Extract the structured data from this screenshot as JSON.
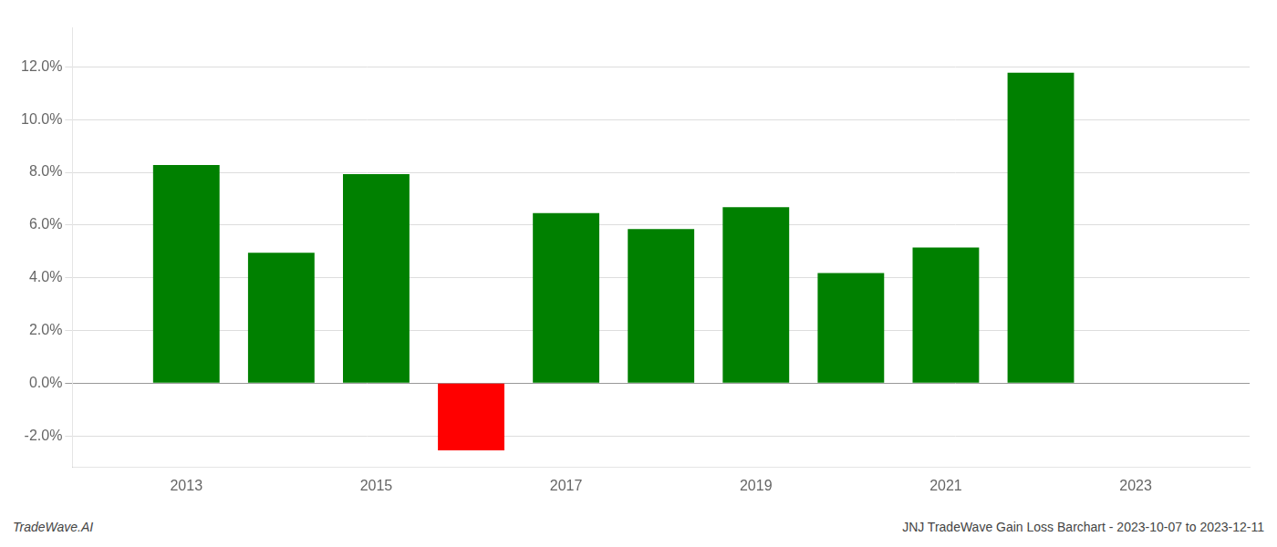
{
  "chart_data": {
    "type": "bar",
    "x": [
      2013,
      2014,
      2015,
      2016,
      2017,
      2018,
      2019,
      2020,
      2021,
      2022,
      2023
    ],
    "values": [
      0.0828,
      0.0495,
      0.0793,
      -0.0255,
      0.0645,
      0.0585,
      0.0668,
      0.0418,
      0.0515,
      0.1178,
      null
    ],
    "colors": [
      "#008000",
      "#008000",
      "#008000",
      "#ff0000",
      "#008000",
      "#008000",
      "#008000",
      "#008000",
      "#008000",
      "#008000",
      null
    ],
    "xlim": [
      2011.8,
      2024.2
    ],
    "xticks": [
      2013,
      2015,
      2017,
      2019,
      2021,
      2023
    ],
    "ylim": [
      -0.032,
      0.135
    ],
    "yticks": [
      {
        "value": -0.02,
        "label": "-2.0%"
      },
      {
        "value": 0.0,
        "label": "0.0%"
      },
      {
        "value": 0.02,
        "label": "2.0%"
      },
      {
        "value": 0.04,
        "label": "4.0%"
      },
      {
        "value": 0.06,
        "label": "6.0%"
      },
      {
        "value": 0.08,
        "label": "8.0%"
      },
      {
        "value": 0.1,
        "label": "10.0%"
      },
      {
        "value": 0.12,
        "label": "12.0%"
      }
    ],
    "grid": true,
    "annotations": [
      "TradeWave.AI",
      "JNJ TradeWave Gain Loss Barchart - 2023-10-07 to 2023-12-11"
    ]
  }
}
